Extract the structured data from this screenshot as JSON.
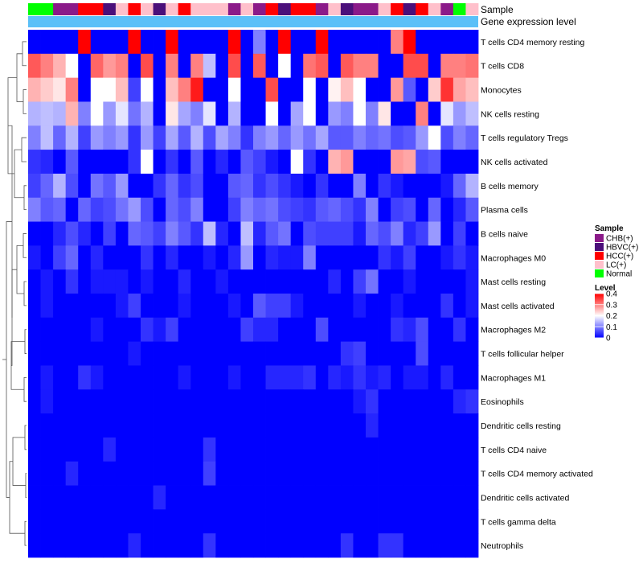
{
  "chart_data": {
    "type": "heatmap",
    "annotations": {
      "sample_track_label": "Sample",
      "level_track_label": "Gene expression level"
    },
    "rows": [
      "T cells CD4 memory resting",
      "T cells CD8",
      "Monocytes",
      "NK cells resting",
      "T cells regulatory  Tregs",
      "NK cells activated",
      "B cells memory",
      "Plasma cells",
      "B cells naive",
      "Macrophages M0",
      "Mast cells resting",
      "Mast cells activated",
      "Macrophages M2",
      "T cells follicular helper",
      "Macrophages M1",
      "Eosinophils",
      "Dendritic cells resting",
      "T cells CD4 naive",
      "T cells CD4 memory activated",
      "Dendritic cells activated",
      "T cells gamma delta",
      "Neutrophils"
    ],
    "samples": [
      "Normal",
      "Normal",
      "CHB(+)",
      "CHB(+)",
      "HCC(+)",
      "HCC(+)",
      "HBVC(+)",
      "LC(+)",
      "HCC(+)",
      "LC(+)",
      "HBVC(+)",
      "LC(+)",
      "HCC(+)",
      "LC(+)",
      "LC(+)",
      "LC(+)",
      "CHB(+)",
      "LC(+)",
      "CHB(+)",
      "HCC(+)",
      "HBVC(+)",
      "HCC(+)",
      "HCC(+)",
      "CHB(+)",
      "LC(+)",
      "HBVC(+)",
      "CHB(+)",
      "CHB(+)",
      "LC(+)",
      "HCC(+)",
      "HBVC(+)",
      "HCC(+)",
      "LC(+)",
      "CHB(+)",
      "Normal",
      "LC(+)"
    ],
    "values": [
      [
        0.0,
        0.0,
        0.0,
        0.0,
        0.4,
        0.0,
        0.0,
        0.0,
        0.4,
        0.0,
        0.0,
        0.4,
        0.0,
        0.0,
        0.0,
        0.0,
        0.4,
        0.0,
        0.1,
        0.0,
        0.4,
        0.0,
        0.0,
        0.4,
        0.0,
        0.0,
        0.0,
        0.0,
        0.0,
        0.3,
        0.4,
        0.0,
        0.0,
        0.0,
        0.0,
        0.0
      ],
      [
        0.33,
        0.3,
        0.26,
        0.2,
        0.0,
        0.32,
        0.28,
        0.3,
        0.0,
        0.34,
        0.0,
        0.3,
        0.0,
        0.3,
        0.15,
        0.0,
        0.34,
        0.0,
        0.33,
        0.0,
        0.2,
        0.0,
        0.31,
        0.33,
        0.0,
        0.33,
        0.3,
        0.3,
        0.0,
        0.0,
        0.34,
        0.34,
        0.0,
        0.3,
        0.3,
        0.31
      ],
      [
        0.26,
        0.24,
        0.22,
        0.3,
        0.0,
        0.2,
        0.2,
        0.25,
        0.05,
        0.2,
        0.0,
        0.25,
        0.3,
        0.38,
        0.0,
        0.0,
        0.2,
        0.0,
        0.0,
        0.34,
        0.0,
        0.0,
        0.2,
        0.0,
        0.21,
        0.25,
        0.2,
        0.0,
        0.0,
        0.28,
        0.07,
        0.0,
        0.24,
        0.36,
        0.27,
        0.25
      ],
      [
        0.14,
        0.15,
        0.14,
        0.26,
        0.1,
        0.2,
        0.12,
        0.18,
        0.09,
        0.14,
        0.0,
        0.22,
        0.13,
        0.1,
        0.18,
        0.0,
        0.14,
        0.0,
        0.0,
        0.2,
        0.0,
        0.13,
        0.2,
        0.0,
        0.12,
        0.1,
        0.2,
        0.1,
        0.22,
        0.0,
        0.0,
        0.3,
        0.0,
        0.18,
        0.12,
        0.15
      ],
      [
        0.1,
        0.15,
        0.08,
        0.14,
        0.05,
        0.12,
        0.1,
        0.12,
        0.04,
        0.12,
        0.05,
        0.13,
        0.07,
        0.14,
        0.06,
        0.13,
        0.1,
        0.04,
        0.1,
        0.12,
        0.08,
        0.12,
        0.09,
        0.13,
        0.07,
        0.07,
        0.1,
        0.08,
        0.09,
        0.06,
        0.07,
        0.12,
        0.2,
        0.06,
        0.1,
        0.08
      ],
      [
        0.04,
        0.03,
        0.0,
        0.07,
        0.0,
        0.0,
        0.0,
        0.0,
        0.04,
        0.2,
        0.0,
        0.04,
        0.0,
        0.07,
        0.0,
        0.03,
        0.0,
        0.07,
        0.05,
        0.02,
        0.0,
        0.2,
        0.04,
        0.0,
        0.26,
        0.28,
        0.0,
        0.0,
        0.0,
        0.28,
        0.27,
        0.06,
        0.07,
        0.0,
        0.0,
        0.0
      ],
      [
        0.05,
        0.08,
        0.14,
        0.06,
        0.0,
        0.09,
        0.07,
        0.12,
        0.0,
        0.0,
        0.04,
        0.08,
        0.04,
        0.06,
        0.0,
        0.0,
        0.07,
        0.08,
        0.04,
        0.06,
        0.04,
        0.02,
        0.0,
        0.04,
        0.0,
        0.0,
        0.1,
        0.0,
        0.04,
        0.02,
        0.0,
        0.0,
        0.0,
        0.02,
        0.08,
        0.14
      ],
      [
        0.1,
        0.07,
        0.08,
        0.0,
        0.08,
        0.05,
        0.06,
        0.09,
        0.12,
        0.06,
        0.0,
        0.08,
        0.06,
        0.1,
        0.0,
        0.0,
        0.05,
        0.1,
        0.08,
        0.09,
        0.06,
        0.05,
        0.04,
        0.07,
        0.08,
        0.06,
        0.04,
        0.1,
        0.0,
        0.05,
        0.06,
        0.0,
        0.08,
        0.0,
        0.03,
        0.07
      ],
      [
        0.0,
        0.0,
        0.03,
        0.06,
        0.03,
        0.0,
        0.05,
        0.0,
        0.08,
        0.07,
        0.05,
        0.1,
        0.07,
        0.04,
        0.15,
        0.03,
        0.0,
        0.15,
        0.03,
        0.07,
        0.09,
        0.0,
        0.06,
        0.05,
        0.05,
        0.05,
        0.02,
        0.08,
        0.06,
        0.1,
        0.03,
        0.05,
        0.12,
        0.0,
        0.05,
        0.0
      ],
      [
        0.02,
        0.0,
        0.05,
        0.08,
        0.0,
        0.03,
        0.0,
        0.0,
        0.0,
        0.04,
        0.0,
        0.03,
        0.0,
        0.0,
        0.02,
        0.0,
        0.03,
        0.12,
        0.0,
        0.03,
        0.02,
        0.02,
        0.1,
        0.0,
        0.0,
        0.0,
        0.0,
        0.0,
        0.04,
        0.02,
        0.05,
        0.0,
        0.0,
        0.02,
        0.04,
        0.02
      ],
      [
        0.0,
        0.02,
        0.0,
        0.04,
        0.0,
        0.02,
        0.02,
        0.02,
        0.0,
        0.02,
        0.0,
        0.0,
        0.03,
        0.0,
        0.0,
        0.02,
        0.0,
        0.0,
        0.0,
        0.0,
        0.0,
        0.0,
        0.0,
        0.0,
        0.03,
        0.0,
        0.05,
        0.09,
        0.0,
        0.0,
        0.02,
        0.0,
        0.0,
        0.0,
        0.0,
        0.02
      ],
      [
        0.0,
        0.02,
        0.0,
        0.0,
        0.0,
        0.0,
        0.0,
        0.02,
        0.05,
        0.0,
        0.0,
        0.0,
        0.02,
        0.0,
        0.0,
        0.0,
        0.02,
        0.0,
        0.07,
        0.05,
        0.05,
        0.02,
        0.0,
        0.0,
        0.0,
        0.0,
        0.02,
        0.0,
        0.0,
        0.02,
        0.0,
        0.0,
        0.0,
        0.04,
        0.0,
        0.02
      ],
      [
        0.0,
        0.0,
        0.0,
        0.0,
        0.0,
        0.02,
        0.0,
        0.0,
        0.0,
        0.04,
        0.02,
        0.05,
        0.0,
        0.0,
        0.0,
        0.0,
        0.0,
        0.05,
        0.03,
        0.03,
        0.0,
        0.0,
        0.0,
        0.06,
        0.0,
        0.0,
        0.0,
        0.0,
        0.0,
        0.04,
        0.03,
        0.06,
        0.0,
        0.0,
        0.04,
        0.0
      ],
      [
        0.0,
        0.0,
        0.0,
        0.0,
        0.0,
        0.0,
        0.0,
        0.0,
        0.02,
        0.0,
        0.0,
        0.0,
        0.0,
        0.0,
        0.0,
        0.0,
        0.0,
        0.0,
        0.0,
        0.0,
        0.0,
        0.0,
        0.0,
        0.0,
        0.0,
        0.04,
        0.05,
        0.0,
        0.0,
        0.0,
        0.0,
        0.06,
        0.0,
        0.0,
        0.0,
        0.0
      ],
      [
        0.0,
        0.02,
        0.0,
        0.0,
        0.04,
        0.02,
        0.0,
        0.0,
        0.0,
        0.0,
        0.0,
        0.0,
        0.02,
        0.0,
        0.0,
        0.0,
        0.02,
        0.0,
        0.0,
        0.03,
        0.03,
        0.03,
        0.04,
        0.0,
        0.03,
        0.02,
        0.04,
        0.02,
        0.03,
        0.0,
        0.02,
        0.02,
        0.0,
        0.03,
        0.0,
        0.0
      ],
      [
        0.0,
        0.02,
        0.0,
        0.0,
        0.0,
        0.0,
        0.0,
        0.0,
        0.0,
        0.0,
        0.0,
        0.0,
        0.0,
        0.0,
        0.0,
        0.0,
        0.0,
        0.0,
        0.0,
        0.0,
        0.0,
        0.0,
        0.0,
        0.0,
        0.0,
        0.0,
        0.02,
        0.04,
        0.0,
        0.0,
        0.0,
        0.0,
        0.0,
        0.0,
        0.03,
        0.04
      ],
      [
        0.0,
        0.0,
        0.0,
        0.0,
        0.0,
        0.0,
        0.0,
        0.0,
        0.0,
        0.0,
        0.0,
        0.0,
        0.0,
        0.0,
        0.0,
        0.0,
        0.0,
        0.0,
        0.0,
        0.0,
        0.0,
        0.0,
        0.0,
        0.0,
        0.0,
        0.0,
        0.0,
        0.03,
        0.0,
        0.0,
        0.0,
        0.0,
        0.0,
        0.0,
        0.0,
        0.0
      ],
      [
        0.0,
        0.0,
        0.0,
        0.0,
        0.0,
        0.0,
        0.03,
        0.0,
        0.0,
        0.0,
        0.0,
        0.0,
        0.0,
        0.0,
        0.04,
        0.0,
        0.0,
        0.0,
        0.0,
        0.0,
        0.0,
        0.0,
        0.0,
        0.0,
        0.0,
        0.0,
        0.0,
        0.0,
        0.0,
        0.0,
        0.0,
        0.0,
        0.0,
        0.0,
        0.0,
        0.0
      ],
      [
        0.0,
        0.0,
        0.0,
        0.03,
        0.0,
        0.0,
        0.0,
        0.0,
        0.0,
        0.0,
        0.0,
        0.0,
        0.0,
        0.0,
        0.05,
        0.0,
        0.0,
        0.0,
        0.0,
        0.0,
        0.0,
        0.0,
        0.0,
        0.0,
        0.0,
        0.0,
        0.0,
        0.0,
        0.0,
        0.0,
        0.0,
        0.0,
        0.0,
        0.0,
        0.0,
        0.0
      ],
      [
        0.0,
        0.0,
        0.0,
        0.0,
        0.0,
        0.0,
        0.0,
        0.0,
        0.0,
        0.0,
        0.03,
        0.0,
        0.0,
        0.0,
        0.0,
        0.0,
        0.0,
        0.0,
        0.0,
        0.0,
        0.0,
        0.0,
        0.0,
        0.0,
        0.0,
        0.0,
        0.0,
        0.0,
        0.0,
        0.0,
        0.0,
        0.0,
        0.0,
        0.0,
        0.0,
        0.0
      ],
      [
        0.0,
        0.0,
        0.0,
        0.0,
        0.0,
        0.0,
        0.0,
        0.0,
        0.0,
        0.0,
        0.0,
        0.0,
        0.0,
        0.0,
        0.0,
        0.0,
        0.0,
        0.0,
        0.0,
        0.0,
        0.0,
        0.0,
        0.0,
        0.0,
        0.0,
        0.0,
        0.0,
        0.0,
        0.0,
        0.0,
        0.0,
        0.0,
        0.0,
        0.0,
        0.0,
        0.0
      ],
      [
        0.0,
        0.0,
        0.0,
        0.0,
        0.0,
        0.0,
        0.0,
        0.0,
        0.03,
        0.0,
        0.0,
        0.0,
        0.0,
        0.0,
        0.04,
        0.0,
        0.0,
        0.0,
        0.0,
        0.0,
        0.0,
        0.0,
        0.0,
        0.0,
        0.0,
        0.04,
        0.0,
        0.0,
        0.04,
        0.04,
        0.0,
        0.0,
        0.0,
        0.0,
        0.0,
        0.0
      ]
    ],
    "sample_legend": {
      "title": "Sample",
      "items": [
        {
          "label": "CHB(+)",
          "color": "#8B1A89"
        },
        {
          "label": "HBVC(+)",
          "color": "#4B0F7A"
        },
        {
          "label": "HCC(+)",
          "color": "#FF0000"
        },
        {
          "label": "LC(+)",
          "color": "#FFC0CB"
        },
        {
          "label": "Normal",
          "color": "#00FF00"
        }
      ]
    },
    "level_legend": {
      "title": "Level",
      "ticks": [
        0.4,
        0.3,
        0.2,
        0.1,
        0
      ],
      "tick_labels": [
        "0.4",
        "0.3",
        "0.2",
        "0.1",
        "0"
      ],
      "range": [
        0,
        0.4
      ],
      "level_track_color": "#5BC0F8"
    },
    "colorscale": {
      "low": "#0000FF",
      "mid": "#FFFFFF",
      "mid_value": 0.2,
      "high": "#FF0000"
    }
  }
}
